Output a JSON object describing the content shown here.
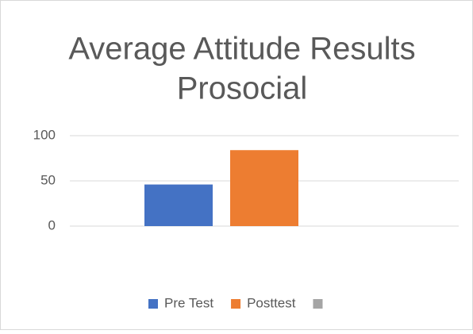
{
  "chart_data": {
    "type": "bar",
    "title": [
      "Average Attitude Results",
      "Prosocial"
    ],
    "categories": [
      null
    ],
    "series": [
      {
        "name": "Pre Test",
        "color": "#4472c4",
        "values": [
          46
        ]
      },
      {
        "name": "Posttest",
        "color": "#ed7d31",
        "values": [
          84
        ]
      },
      {
        "name": null,
        "color": "#a5a5a5",
        "values": [
          null
        ]
      }
    ],
    "ylim": [
      0,
      100
    ],
    "yticks": [
      0,
      50,
      100
    ],
    "grid": true,
    "legend": "bottom"
  }
}
